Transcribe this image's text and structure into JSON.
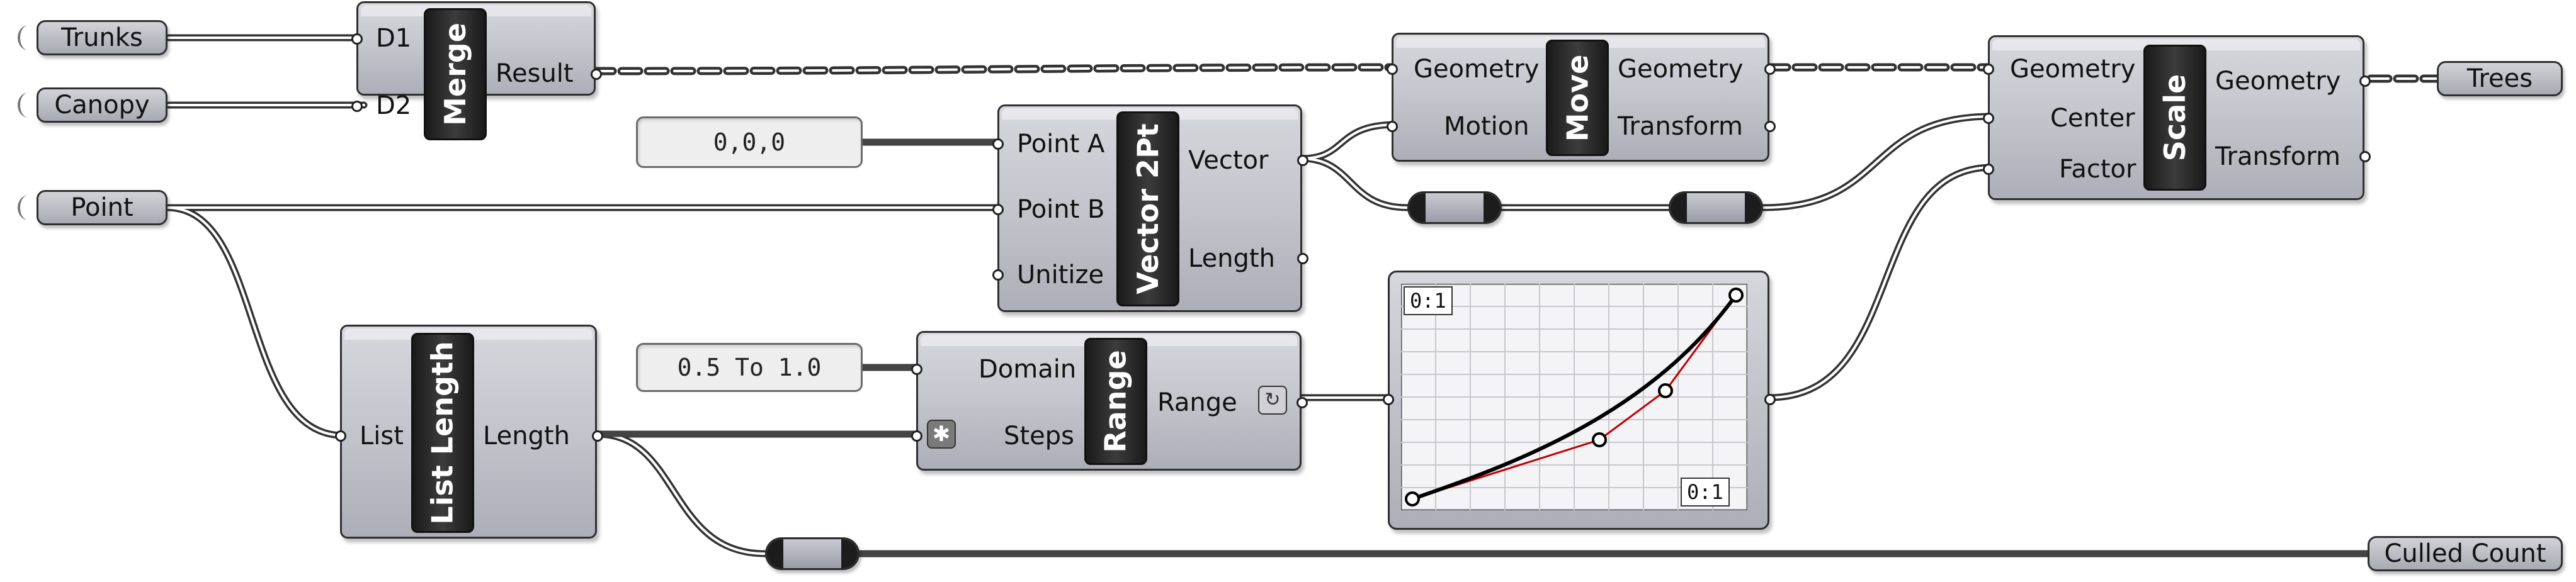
{
  "params": {
    "trunks": "Trunks",
    "canopy": "Canopy",
    "point": "Point",
    "trees": "Trees",
    "culled_count": "Culled Count"
  },
  "panels": {
    "origin": "0,0,0",
    "domain": "0.5 To 1.0"
  },
  "merge": {
    "nickname": "Merge",
    "inputs": [
      "D1",
      "D2"
    ],
    "outputs": [
      "Result"
    ]
  },
  "move": {
    "nickname": "Move",
    "inputs": [
      "Geometry",
      "Motion"
    ],
    "outputs": [
      "Geometry",
      "Transform"
    ]
  },
  "vector2pt": {
    "nickname": "Vector 2Pt",
    "inputs": [
      "Point A",
      "Point B",
      "Unitize"
    ],
    "outputs": [
      "Vector",
      "Length"
    ]
  },
  "scale": {
    "nickname": "Scale",
    "inputs": [
      "Geometry",
      "Center",
      "Factor"
    ],
    "outputs": [
      "Geometry",
      "Transform"
    ]
  },
  "list_length": {
    "nickname": "List Length",
    "inputs": [
      "List"
    ],
    "outputs": [
      "Length"
    ]
  },
  "range": {
    "nickname": "Range",
    "inputs": [
      "Domain",
      "Steps"
    ],
    "outputs": [
      "Range"
    ]
  },
  "graph": {
    "label_top": "0:1",
    "label_bottom": "0:1"
  },
  "icons": {
    "steps_flag": "asterisk-icon",
    "range_flag": "refresh-icon",
    "emitter": "wireless-icon"
  }
}
